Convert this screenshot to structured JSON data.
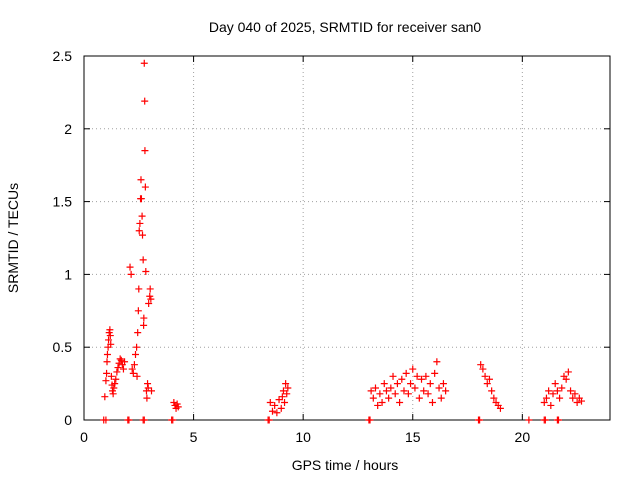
{
  "chart_data": {
    "type": "scatter",
    "title": "Day 040 of 2025, SRMTID for receiver san0",
    "xlabel": "GPS time / hours",
    "ylabel": "SRMTID / TECUs",
    "xlim": [
      0,
      24
    ],
    "ylim": [
      0,
      2.5
    ],
    "xticks": [
      0,
      5,
      10,
      15,
      20
    ],
    "yticks": [
      0,
      0.5,
      1,
      1.5,
      2,
      2.5
    ],
    "xtick_labels": [
      "0",
      "5",
      "10",
      "15",
      "20"
    ],
    "ytick_labels": [
      "0",
      "0.5",
      "1",
      "1.5",
      "2",
      "2.5"
    ],
    "grid": true,
    "marker": "plus",
    "color": "#ff0000",
    "series": [
      {
        "name": "SRMTID",
        "points": [
          [
            0.9,
            0.0
          ],
          [
            1.0,
            0.0
          ],
          [
            2.0,
            0.0
          ],
          [
            2.05,
            0.0
          ],
          [
            2.7,
            0.0
          ],
          [
            2.75,
            0.0
          ],
          [
            4.0,
            0.0
          ],
          [
            4.05,
            0.0
          ],
          [
            8.4,
            0.0
          ],
          [
            8.45,
            0.0
          ],
          [
            13.0,
            0.0
          ],
          [
            13.05,
            0.0
          ],
          [
            18.0,
            0.0
          ],
          [
            18.05,
            0.0
          ],
          [
            20.3,
            0.0
          ],
          [
            21.0,
            0.0
          ],
          [
            21.05,
            0.0
          ],
          [
            21.6,
            0.0
          ],
          [
            21.65,
            0.0
          ],
          [
            0.95,
            0.16
          ],
          [
            1.0,
            0.27
          ],
          [
            1.03,
            0.32
          ],
          [
            1.05,
            0.4
          ],
          [
            1.07,
            0.45
          ],
          [
            1.1,
            0.5
          ],
          [
            1.12,
            0.55
          ],
          [
            1.15,
            0.6
          ],
          [
            1.18,
            0.62
          ],
          [
            1.2,
            0.58
          ],
          [
            1.22,
            0.52
          ],
          [
            1.25,
            0.3
          ],
          [
            1.28,
            0.24
          ],
          [
            1.3,
            0.2
          ],
          [
            1.33,
            0.18
          ],
          [
            1.36,
            0.22
          ],
          [
            1.4,
            0.25
          ],
          [
            1.45,
            0.28
          ],
          [
            1.5,
            0.33
          ],
          [
            1.55,
            0.36
          ],
          [
            1.6,
            0.39
          ],
          [
            1.65,
            0.42
          ],
          [
            1.7,
            0.41
          ],
          [
            1.75,
            0.38
          ],
          [
            1.8,
            0.35
          ],
          [
            1.85,
            0.4
          ],
          [
            2.1,
            1.05
          ],
          [
            2.15,
            1.0
          ],
          [
            2.2,
            0.35
          ],
          [
            2.25,
            0.32
          ],
          [
            2.3,
            0.38
          ],
          [
            2.35,
            0.45
          ],
          [
            2.4,
            0.5
          ],
          [
            2.42,
            0.3
          ],
          [
            2.45,
            0.6
          ],
          [
            2.48,
            0.75
          ],
          [
            2.5,
            0.9
          ],
          [
            2.52,
            1.3
          ],
          [
            2.55,
            1.35
          ],
          [
            2.58,
            1.52
          ],
          [
            2.6,
            1.65
          ],
          [
            2.62,
            1.52
          ],
          [
            2.65,
            1.4
          ],
          [
            2.67,
            1.27
          ],
          [
            2.7,
            1.1
          ],
          [
            2.72,
            0.65
          ],
          [
            2.73,
            0.7
          ],
          [
            2.75,
            2.45
          ],
          [
            2.77,
            2.19
          ],
          [
            2.78,
            1.85
          ],
          [
            2.8,
            1.6
          ],
          [
            2.82,
            1.02
          ],
          [
            2.85,
            0.2
          ],
          [
            2.87,
            0.15
          ],
          [
            2.9,
            0.25
          ],
          [
            2.93,
            0.22
          ],
          [
            2.95,
            0.8
          ],
          [
            3.0,
            0.85
          ],
          [
            3.02,
            0.9
          ],
          [
            3.05,
            0.83
          ],
          [
            3.08,
            0.2
          ],
          [
            4.1,
            0.12
          ],
          [
            4.15,
            0.1
          ],
          [
            4.2,
            0.08
          ],
          [
            4.25,
            0.11
          ],
          [
            4.3,
            0.09
          ],
          [
            8.5,
            0.12
          ],
          [
            8.6,
            0.06
          ],
          [
            8.7,
            0.1
          ],
          [
            8.8,
            0.05
          ],
          [
            8.9,
            0.14
          ],
          [
            9.0,
            0.08
          ],
          [
            9.05,
            0.16
          ],
          [
            9.1,
            0.2
          ],
          [
            9.15,
            0.12
          ],
          [
            9.2,
            0.25
          ],
          [
            9.25,
            0.18
          ],
          [
            9.3,
            0.22
          ],
          [
            13.1,
            0.2
          ],
          [
            13.2,
            0.15
          ],
          [
            13.3,
            0.22
          ],
          [
            13.4,
            0.1
          ],
          [
            13.5,
            0.18
          ],
          [
            13.6,
            0.12
          ],
          [
            13.7,
            0.25
          ],
          [
            13.8,
            0.2
          ],
          [
            13.9,
            0.15
          ],
          [
            14.0,
            0.22
          ],
          [
            14.1,
            0.3
          ],
          [
            14.2,
            0.18
          ],
          [
            14.3,
            0.25
          ],
          [
            14.4,
            0.12
          ],
          [
            14.5,
            0.28
          ],
          [
            14.6,
            0.2
          ],
          [
            14.7,
            0.32
          ],
          [
            14.8,
            0.18
          ],
          [
            14.9,
            0.25
          ],
          [
            15.0,
            0.35
          ],
          [
            15.1,
            0.22
          ],
          [
            15.2,
            0.3
          ],
          [
            15.3,
            0.15
          ],
          [
            15.4,
            0.28
          ],
          [
            15.5,
            0.2
          ],
          [
            15.6,
            0.3
          ],
          [
            15.7,
            0.18
          ],
          [
            15.8,
            0.25
          ],
          [
            15.9,
            0.12
          ],
          [
            16.0,
            0.32
          ],
          [
            16.1,
            0.4
          ],
          [
            16.2,
            0.22
          ],
          [
            16.3,
            0.15
          ],
          [
            16.4,
            0.25
          ],
          [
            16.5,
            0.2
          ],
          [
            18.1,
            0.38
          ],
          [
            18.2,
            0.35
          ],
          [
            18.3,
            0.3
          ],
          [
            18.4,
            0.25
          ],
          [
            18.5,
            0.28
          ],
          [
            18.6,
            0.2
          ],
          [
            18.7,
            0.15
          ],
          [
            18.8,
            0.12
          ],
          [
            18.9,
            0.1
          ],
          [
            19.0,
            0.08
          ],
          [
            21.0,
            0.12
          ],
          [
            21.1,
            0.15
          ],
          [
            21.2,
            0.2
          ],
          [
            21.3,
            0.1
          ],
          [
            21.4,
            0.18
          ],
          [
            21.5,
            0.25
          ],
          [
            21.6,
            0.2
          ],
          [
            21.7,
            0.15
          ],
          [
            21.8,
            0.22
          ],
          [
            21.9,
            0.3
          ],
          [
            22.0,
            0.28
          ],
          [
            22.1,
            0.33
          ],
          [
            22.2,
            0.2
          ],
          [
            22.3,
            0.15
          ],
          [
            22.4,
            0.18
          ],
          [
            22.5,
            0.12
          ],
          [
            22.6,
            0.15
          ],
          [
            22.7,
            0.13
          ]
        ]
      }
    ]
  }
}
